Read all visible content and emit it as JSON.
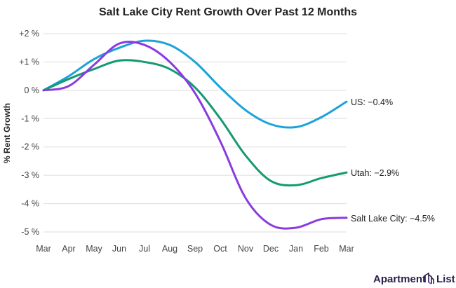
{
  "chart_data": {
    "type": "line",
    "title": "Salt Lake City Rent Growth Over Past 12 Months",
    "ylabel": "% Rent Growth",
    "xlabel": "",
    "categories": [
      "Mar",
      "Apr",
      "May",
      "Jun",
      "Jul",
      "Aug",
      "Sep",
      "Oct",
      "Nov",
      "Dec",
      "Jan",
      "Feb",
      "Mar"
    ],
    "yticks": [
      2,
      1,
      0,
      -1,
      -2,
      -3,
      -4,
      -5
    ],
    "ytick_labels": [
      "+2 %",
      "+1 %",
      "0 %",
      "-1 %",
      "-2 %",
      "-3 %",
      "-4 %",
      "-5 %"
    ],
    "ylim": [
      -5,
      2
    ],
    "grid": true,
    "series": [
      {
        "name": "US",
        "end_label": "US: −0.4%",
        "color": "#1ba3d9",
        "values": [
          0,
          0.5,
          1.1,
          1.5,
          1.75,
          1.6,
          1.0,
          0.1,
          -0.7,
          -1.2,
          -1.3,
          -0.95,
          -0.4
        ]
      },
      {
        "name": "Utah",
        "end_label": "Utah: −2.9%",
        "color": "#159a72",
        "values": [
          0,
          0.4,
          0.75,
          1.05,
          1.0,
          0.75,
          0.1,
          -1.0,
          -2.3,
          -3.2,
          -3.35,
          -3.1,
          -2.9
        ]
      },
      {
        "name": "Salt Lake City",
        "end_label": "Salt Lake City: −4.5%",
        "color": "#8a3be0",
        "values": [
          0,
          0.15,
          0.9,
          1.65,
          1.6,
          1.0,
          -0.1,
          -1.8,
          -3.8,
          -4.75,
          -4.85,
          -4.55,
          -4.5
        ]
      }
    ]
  },
  "branding": {
    "logo_text_left": "Apartment",
    "logo_text_right": "List"
  }
}
